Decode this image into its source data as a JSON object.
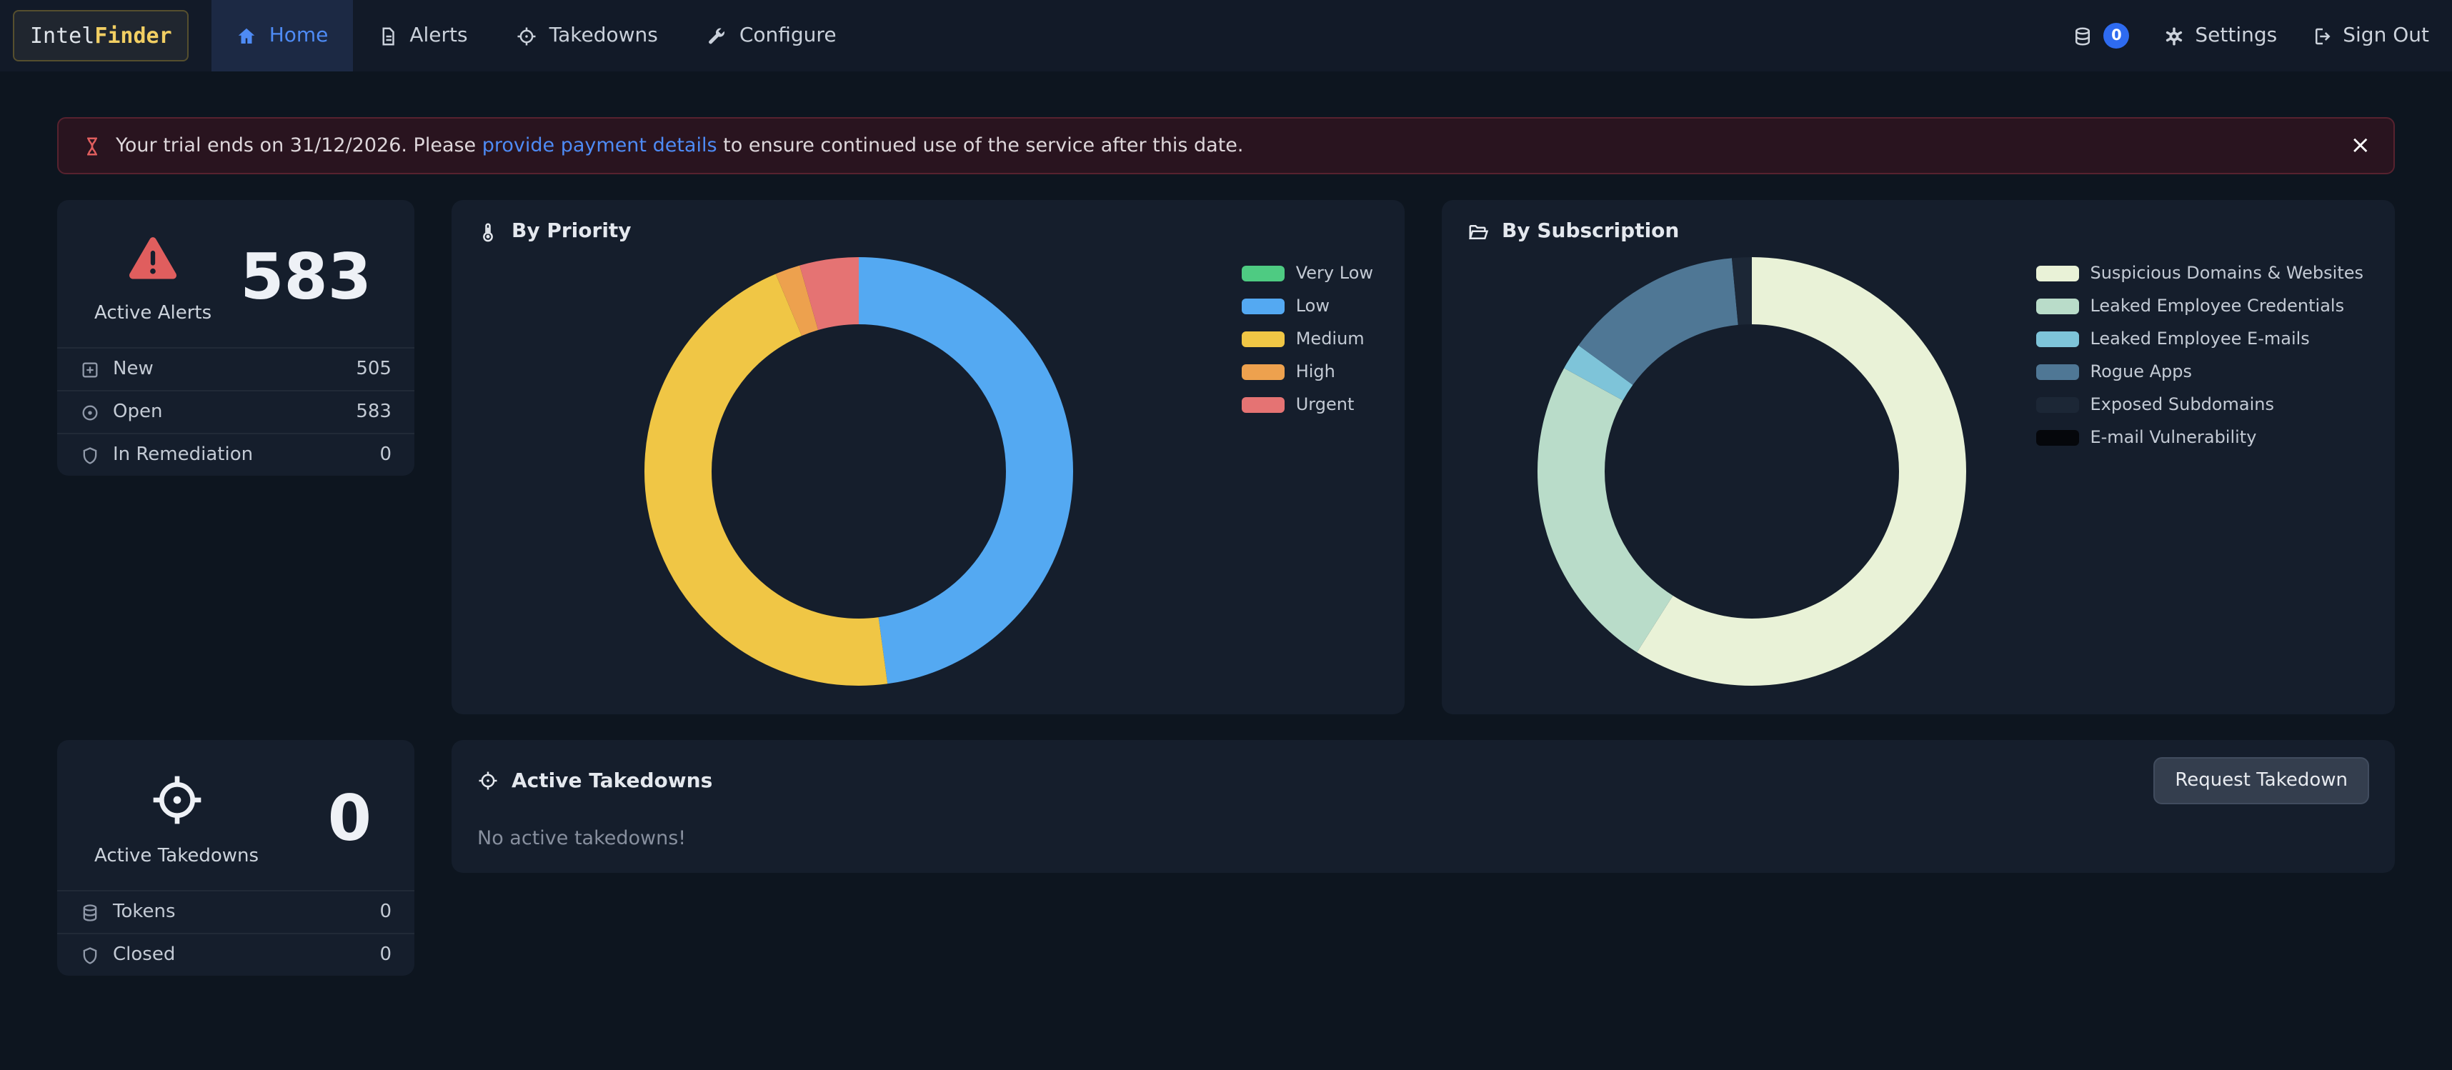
{
  "colors": {
    "page_bg": "#0d151f",
    "nav_bg": "#121a28",
    "card_bg": "#151e2c",
    "accent": "#4e8bf5",
    "warning_red": "#e05e5e",
    "badge_blue": "#2e6bf0",
    "brand_yellow": "#f2cf63"
  },
  "brand": {
    "intel": "Intel",
    "finder": "Finder"
  },
  "nav": {
    "items": [
      {
        "label": "Home",
        "active": true
      },
      {
        "label": "Alerts",
        "active": false
      },
      {
        "label": "Takedowns",
        "active": false
      },
      {
        "label": "Configure",
        "active": false
      }
    ],
    "tokens_badge": "0",
    "settings_label": "Settings",
    "sign_out_label": "Sign Out"
  },
  "banner": {
    "text_before": "Your trial ends on 31/12/2026. Please ",
    "link_text": "provide payment details",
    "text_after": " to ensure continued use of the service after this date.",
    "close_label": "×"
  },
  "alerts_card": {
    "title": "Active Alerts",
    "count": "583",
    "rows": [
      {
        "label": "New",
        "value": "505"
      },
      {
        "label": "Open",
        "value": "583"
      },
      {
        "label": "In Remediation",
        "value": "0"
      }
    ]
  },
  "takedowns_stats_card": {
    "title": "Active Takedowns",
    "count": "0",
    "rows": [
      {
        "label": "Tokens",
        "value": "0"
      },
      {
        "label": "Closed",
        "value": "0"
      }
    ]
  },
  "active_takedowns_panel": {
    "title": "Active Takedowns",
    "button_label": "Request Takedown",
    "empty_text": "No active takedowns!"
  },
  "chart_data": [
    {
      "type": "pie",
      "donut": true,
      "title": "By Priority",
      "icon": "thermometer-icon",
      "labels": [
        "Very Low",
        "Low",
        "Medium",
        "High",
        "Urgent"
      ],
      "values": [
        0,
        279,
        267,
        11,
        26
      ],
      "total": 583,
      "colors": [
        "#4ecb82",
        "#54a9f2",
        "#f0c645",
        "#eda14e",
        "#e57373"
      ],
      "legend_position": "right"
    },
    {
      "type": "pie",
      "donut": true,
      "title": "By Subscription",
      "icon": "folder-open-icon",
      "labels": [
        "Suspicious Domains & Websites",
        "Leaked Employee Credentials",
        "Leaked Employee E-mails",
        "Rogue Apps",
        "Exposed Subdomains",
        "E-mail Vulnerability"
      ],
      "values": [
        59,
        24,
        2,
        13.5,
        1.5,
        0
      ],
      "unit": "percent_estimated",
      "colors": [
        "#e9f2d7",
        "#b9dcc9",
        "#7ec4d9",
        "#4f7795",
        "#1c2736",
        "#05070b"
      ],
      "legend_position": "right"
    }
  ]
}
